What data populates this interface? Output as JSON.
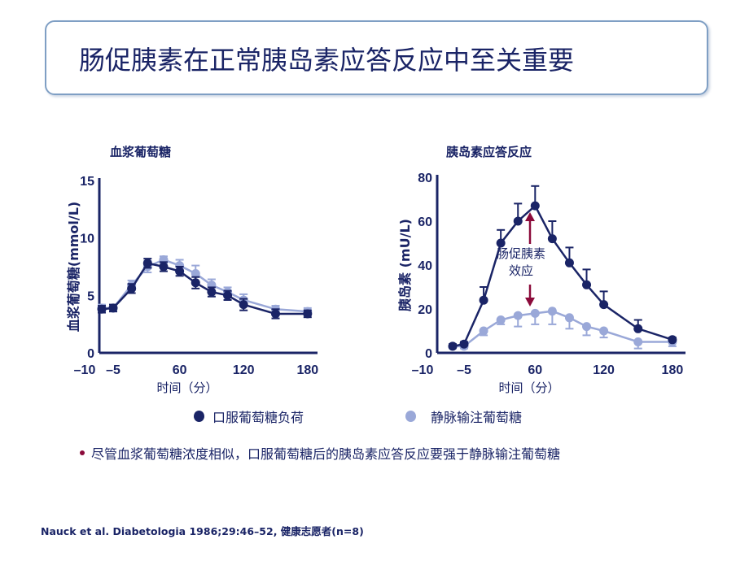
{
  "title": "肠促胰素在正常胰岛素应答反应中至关重要",
  "legend": {
    "oral": {
      "label": "口服葡萄糖负荷",
      "color": "#1a2466"
    },
    "iv": {
      "label": "静脉输注葡萄糖",
      "color": "#9aa8d8"
    }
  },
  "annotation": {
    "line1": "肠促胰素",
    "line2": "效应",
    "arrow_color": "#8b0a3a"
  },
  "bullet": "尽管血浆葡萄糖浓度相似，口服葡萄糖后的胰岛素应答反应要强于静脉输注葡萄糖",
  "citation": "Nauck et al. Diabetologia 1986;29:46–52, 健康志愿者(n=8)",
  "chart_data": [
    {
      "type": "line",
      "title": "血浆葡萄糖",
      "xlabel": "时间（分）",
      "ylabel": "血浆葡萄糖(mmol/L)",
      "x_tick_labels": [
        "–10",
        "–5",
        "60",
        "120",
        "180"
      ],
      "y_ticks": [
        0,
        5,
        10,
        15
      ],
      "ylim": [
        0,
        15
      ],
      "x": [
        -10,
        -5,
        15,
        30,
        45,
        60,
        75,
        90,
        105,
        120,
        150,
        180
      ],
      "series": [
        {
          "name": "静脉输注葡萄糖",
          "color": "#9aa8d8",
          "values": [
            3.9,
            3.9,
            5.9,
            7.5,
            8.1,
            7.6,
            6.9,
            5.9,
            5.3,
            4.6,
            3.8,
            3.6
          ],
          "errors": [
            0.3,
            0.3,
            0.4,
            0.5,
            0.3,
            0.5,
            0.7,
            0.5,
            0.4,
            0.5,
            0.3,
            0.3
          ]
        },
        {
          "name": "口服葡萄糖负荷",
          "color": "#1a2466",
          "values": [
            3.8,
            3.9,
            5.6,
            7.8,
            7.5,
            7.1,
            6.1,
            5.3,
            5.0,
            4.2,
            3.4,
            3.4
          ],
          "errors": [
            0.3,
            0.3,
            0.4,
            0.4,
            0.4,
            0.4,
            0.5,
            0.4,
            0.4,
            0.5,
            0.4,
            0.3
          ]
        }
      ]
    },
    {
      "type": "line",
      "title": "胰岛素应答反应",
      "xlabel": "时间（分）",
      "ylabel": "胰岛素 (mU/L)",
      "x_tick_labels": [
        "–10",
        "–5",
        "60",
        "120",
        "180"
      ],
      "y_ticks": [
        0,
        20,
        40,
        60,
        80
      ],
      "ylim": [
        0,
        80
      ],
      "x": [
        -10,
        -5,
        15,
        30,
        45,
        60,
        75,
        90,
        105,
        120,
        150,
        180
      ],
      "series": [
        {
          "name": "静脉输注葡萄糖",
          "color": "#9aa8d8",
          "values": [
            3,
            3,
            10,
            15,
            17,
            18,
            19,
            16,
            12,
            10,
            5,
            5
          ],
          "errors": [
            1,
            1,
            2,
            2,
            5,
            5,
            6,
            5,
            4,
            3,
            3,
            2
          ]
        },
        {
          "name": "口服葡萄糖负荷",
          "color": "#1a2466",
          "values": [
            3,
            4,
            24,
            50,
            60,
            67,
            52,
            41,
            31,
            22,
            11,
            6
          ],
          "errors": [
            1,
            1,
            6,
            6,
            8,
            9,
            8,
            7,
            7,
            6,
            4,
            1
          ]
        }
      ]
    }
  ]
}
